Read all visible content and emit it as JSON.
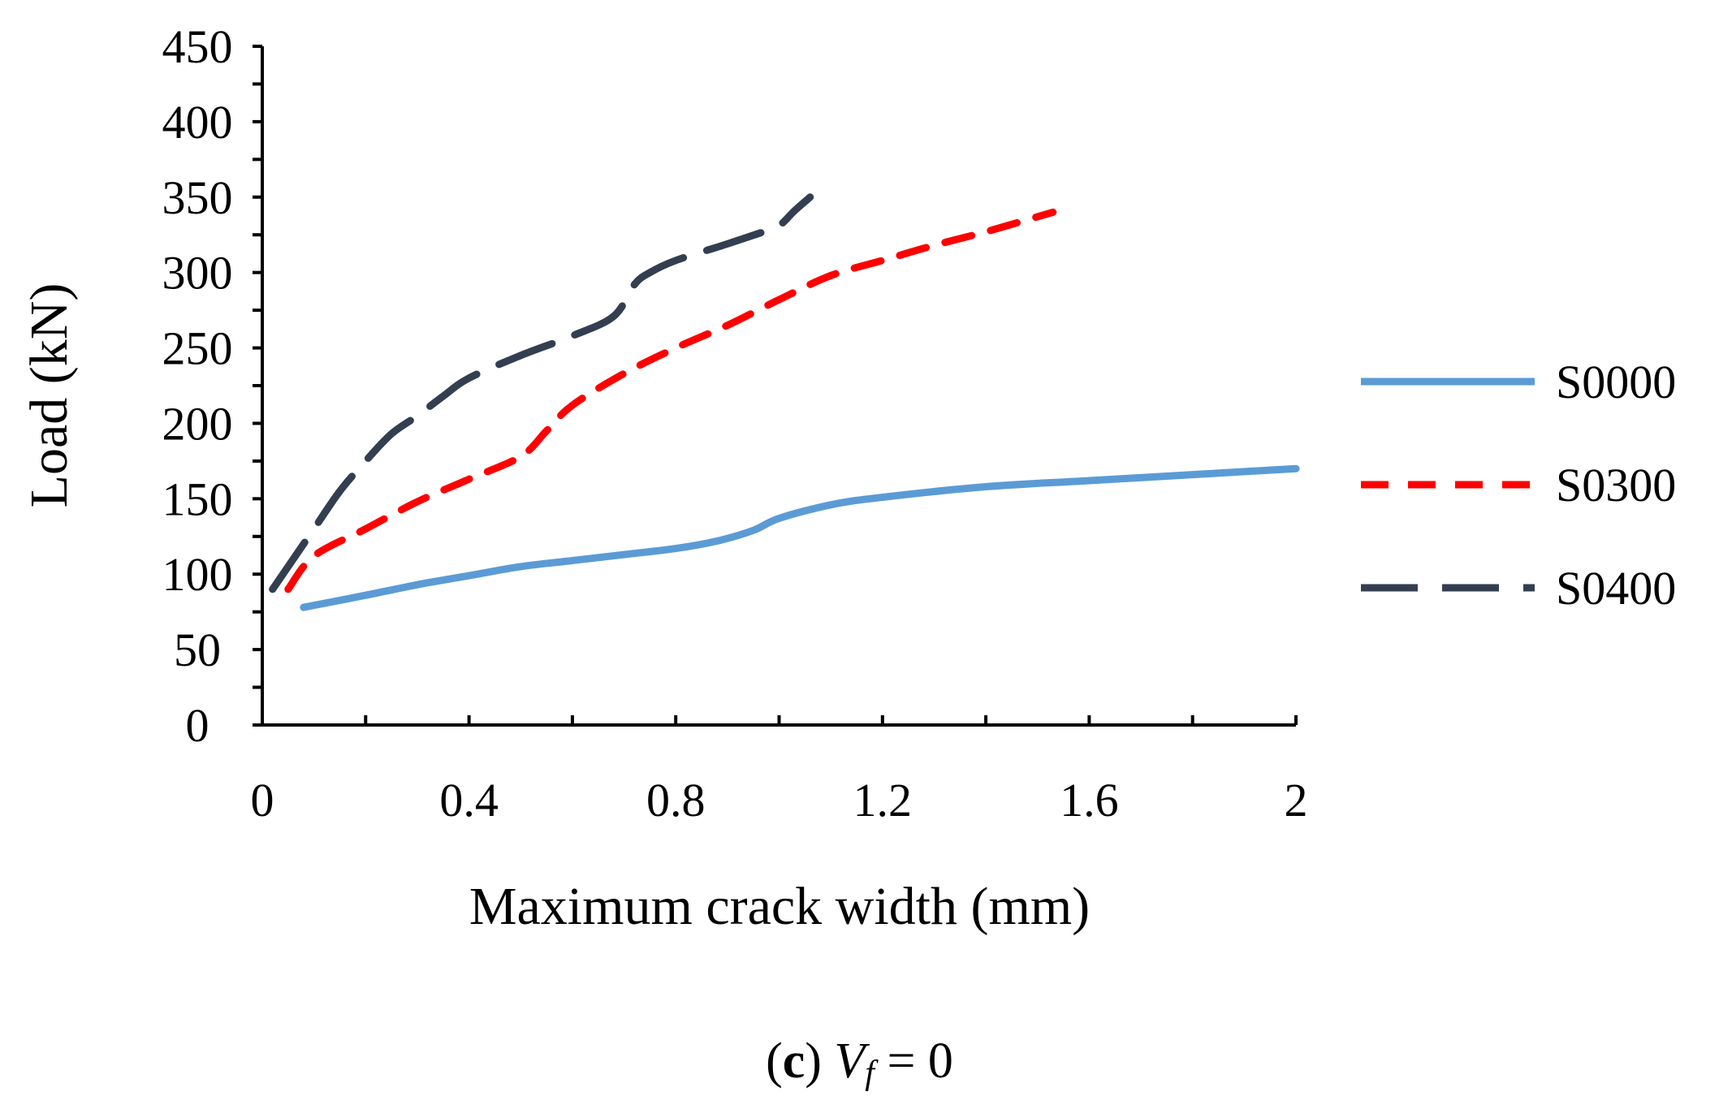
{
  "chart_data": {
    "type": "line",
    "title": "",
    "xlabel": "Maximum crack width (mm)",
    "ylabel": "Load (kN)",
    "xlim": [
      0,
      2
    ],
    "ylim": [
      0,
      450
    ],
    "x_ticks": [
      "0",
      "0.4",
      "0.8",
      "1.2",
      "1.6",
      "2"
    ],
    "y_ticks": [
      "0",
      "50",
      "100",
      "150",
      "200",
      "250",
      "300",
      "350",
      "400",
      "450"
    ],
    "legend_position": "right",
    "series": [
      {
        "name": "S0000",
        "color": "#5B9BD5",
        "style": "solid",
        "x": [
          0.08,
          0.2,
          0.3,
          0.4,
          0.5,
          0.6,
          0.7,
          0.8,
          0.88,
          0.95,
          1.0,
          1.1,
          1.2,
          1.4,
          1.6,
          1.8,
          2.0
        ],
        "y": [
          78,
          86,
          93,
          99,
          105,
          109,
          113,
          117,
          122,
          129,
          137,
          146,
          151,
          158,
          162,
          166,
          170
        ]
      },
      {
        "name": "S0300",
        "color": "#FF0000",
        "style": "dashed",
        "x": [
          0.05,
          0.1,
          0.2,
          0.3,
          0.4,
          0.5,
          0.55,
          0.6,
          0.7,
          0.8,
          0.9,
          1.0,
          1.1,
          1.2,
          1.3,
          1.4,
          1.53
        ],
        "y": [
          90,
          112,
          130,
          148,
          163,
          178,
          195,
          212,
          233,
          250,
          265,
          282,
          298,
          308,
          318,
          327,
          340
        ]
      },
      {
        "name": "S0400",
        "color": "#333F50",
        "style": "long-dashed",
        "x": [
          0.02,
          0.05,
          0.1,
          0.15,
          0.2,
          0.25,
          0.3,
          0.35,
          0.4,
          0.5,
          0.6,
          0.68,
          0.72,
          0.75,
          0.8,
          0.9,
          0.97,
          1.0,
          1.03,
          1.06
        ],
        "y": [
          90,
          105,
          130,
          155,
          175,
          193,
          205,
          218,
          230,
          245,
          258,
          271,
          292,
          300,
          308,
          319,
          327,
          331,
          341,
          350
        ]
      }
    ]
  },
  "caption": {
    "prefix": "(",
    "label": "c",
    "suffix": ")",
    "variable": "V",
    "subscript": "f",
    "equation": " = 0"
  }
}
